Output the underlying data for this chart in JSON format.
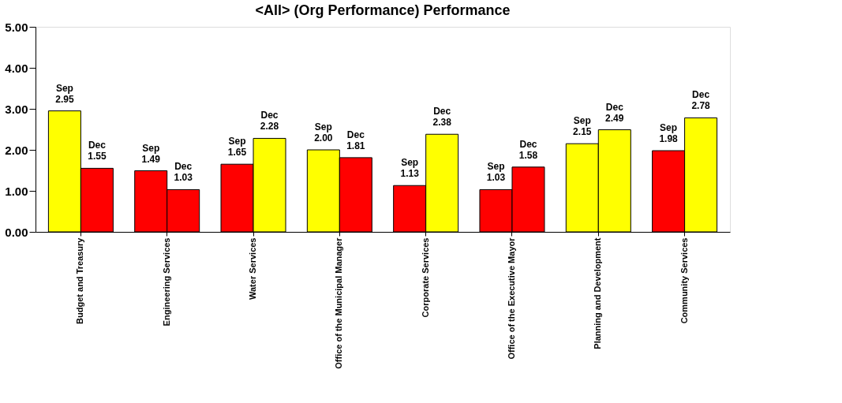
{
  "chart_data": {
    "type": "bar",
    "title": "<All> (Org Performance) Performance",
    "categories": [
      "Budget and Treasury",
      "Engineering Services",
      "Water Services",
      "Office of the Municipal Manager",
      "Corporate Services",
      "Office of the Executive Mayor",
      "Planning and Development",
      "Community Services"
    ],
    "series": [
      {
        "name": "Sep",
        "colors": [
          "#ffff00",
          "#ff0000",
          "#ff0000",
          "#ffff00",
          "#ff0000",
          "#ff0000",
          "#ffff00",
          "#ff0000"
        ],
        "values": [
          2.95,
          1.49,
          1.65,
          2.0,
          1.13,
          1.03,
          2.15,
          1.98
        ],
        "value_labels": [
          "2.95",
          "1.49",
          "1.65",
          "2.00",
          "1.13",
          "1.03",
          "2.15",
          "1.98"
        ]
      },
      {
        "name": "Dec",
        "colors": [
          "#ff0000",
          "#ff0000",
          "#ffff00",
          "#ff0000",
          "#ffff00",
          "#ff0000",
          "#ffff00",
          "#ffff00"
        ],
        "values": [
          1.55,
          1.03,
          2.28,
          1.81,
          2.38,
          1.58,
          2.49,
          2.78
        ],
        "value_labels": [
          "1.55",
          "1.03",
          "2.28",
          "1.81",
          "2.38",
          "1.58",
          "2.49",
          "2.78"
        ]
      }
    ],
    "ylim": [
      0,
      5
    ],
    "yticks": [
      {
        "value": 0,
        "label": "0.00"
      },
      {
        "value": 1,
        "label": "1.00"
      },
      {
        "value": 2,
        "label": "2.00"
      },
      {
        "value": 3,
        "label": "3.00"
      },
      {
        "value": 4,
        "label": "4.00"
      },
      {
        "value": 5,
        "label": "5.00"
      }
    ],
    "grid": false
  }
}
